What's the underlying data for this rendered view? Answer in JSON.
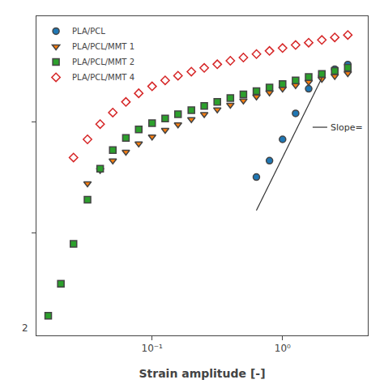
{
  "chart_data": {
    "type": "scatter",
    "xlabel": "Strain amplitude [-]",
    "log": true,
    "grid": false,
    "legend": "upper left",
    "tick_labels": "x",
    "xlim": [
      0.013,
      4.5
    ],
    "ylim": [
      12,
      9000
    ],
    "xticks": [
      {
        "value": 0.1,
        "label": "10⁻¹"
      },
      {
        "value": 1.0,
        "label": "10⁰"
      }
    ],
    "yticks": [
      100,
      1000
    ],
    "series": [
      {
        "name": "PLA/PCL",
        "marker": "circle",
        "x": [
          0.63,
          0.794,
          1.0,
          1.259,
          1.585,
          2.0,
          2.512,
          3.162
        ],
        "values": [
          320,
          450,
          700,
          1200,
          2000,
          2600,
          3000,
          3300
        ]
      },
      {
        "name": "PLA/PCL/MMT 1",
        "marker": "triangle-down",
        "x": [
          0.032,
          0.04,
          0.05,
          0.063,
          0.079,
          0.1,
          0.126,
          0.158,
          0.2,
          0.251,
          0.316,
          0.398,
          0.501,
          0.631,
          0.794,
          1.0,
          1.259,
          1.585,
          2.0,
          2.512,
          3.162
        ],
        "values": [
          280,
          370,
          450,
          540,
          640,
          740,
          850,
          950,
          1060,
          1180,
          1300,
          1430,
          1560,
          1700,
          1850,
          2000,
          2150,
          2300,
          2450,
          2600,
          2750
        ]
      },
      {
        "name": "PLA/PCL/MMT 2",
        "marker": "square",
        "x": [
          0.016,
          0.02,
          0.025,
          0.032,
          0.04,
          0.05,
          0.063,
          0.079,
          0.1,
          0.126,
          0.158,
          0.2,
          0.251,
          0.316,
          0.398,
          0.501,
          0.631,
          0.794,
          1.0,
          1.259,
          1.585,
          2.0,
          2.512,
          3.162
        ],
        "values": [
          18,
          35,
          80,
          200,
          380,
          560,
          720,
          860,
          980,
          1080,
          1180,
          1280,
          1400,
          1520,
          1650,
          1780,
          1900,
          2050,
          2200,
          2380,
          2550,
          2720,
          2900,
          3100
        ]
      },
      {
        "name": "PLA/PCL/MMT 4",
        "marker": "diamond-open",
        "x": [
          0.025,
          0.032,
          0.04,
          0.05,
          0.063,
          0.079,
          0.1,
          0.126,
          0.158,
          0.2,
          0.251,
          0.316,
          0.398,
          0.501,
          0.631,
          0.794,
          1.0,
          1.259,
          1.585,
          2.0,
          2.512,
          3.162
        ],
        "values": [
          480,
          700,
          960,
          1220,
          1520,
          1820,
          2100,
          2380,
          2620,
          2850,
          3080,
          3320,
          3570,
          3820,
          4100,
          4380,
          4650,
          4950,
          5200,
          5500,
          5800,
          6100
        ]
      }
    ],
    "lines": [
      {
        "x": [
          0.63,
          2.0
        ],
        "values": [
          160,
          2500
        ],
        "color": "#333333"
      },
      {
        "x": [
          1.7,
          2.2
        ],
        "values": [
          900,
          900
        ],
        "color": "#333333"
      }
    ],
    "annotations": [
      {
        "text": "Slope=",
        "x": 2.25,
        "y": 900
      },
      {
        "text": "2"
      }
    ]
  }
}
